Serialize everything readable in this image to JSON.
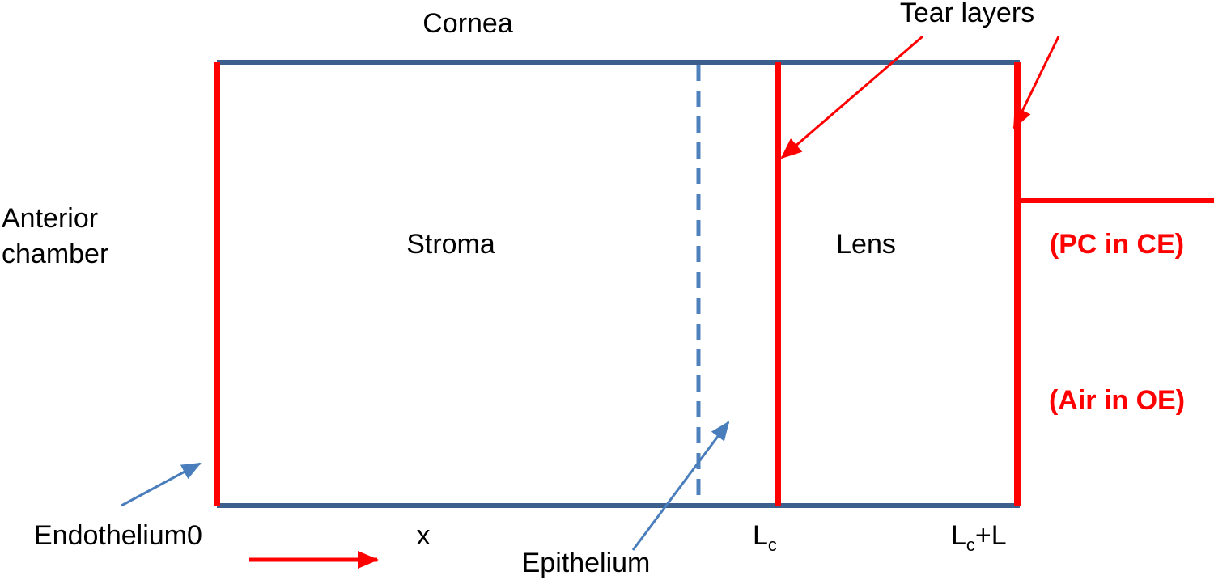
{
  "labels": {
    "cornea": "Cornea",
    "tear_layers": "Tear layers",
    "anterior_chamber_line1": "Anterior",
    "anterior_chamber_line2": "chamber",
    "stroma": "Stroma",
    "lens": "Lens",
    "pc_in_ce": "(PC in CE)",
    "air_in_oe": "(Air in OE)",
    "endothelium": "Endothelium",
    "zero": "0",
    "x": "x",
    "epithelium": "Epithelium",
    "lc_main": "L",
    "lc_sub": "c",
    "lcl_main": "L",
    "lcl_sub": "c",
    "lcl_suffix": "+L"
  },
  "colors": {
    "boundary_blue": "#3c5f8e",
    "dashed_blue": "#4f81bd",
    "arrow_blue": "#4a7dbb",
    "red": "#ff0000",
    "text": "#000000"
  }
}
